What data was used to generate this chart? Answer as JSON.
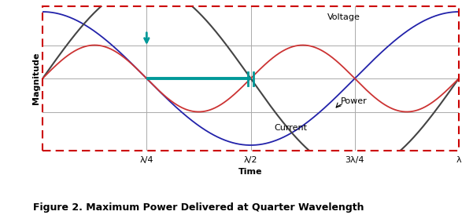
{
  "title": "Figure 2. Maximum Power Delivered at Quarter Wavelength",
  "xlabel": "Time",
  "ylabel": "Magnitude",
  "voltage_label": "Voltage",
  "current_label": "Current",
  "power_label": "Power",
  "voltage_color": "#444444",
  "current_color": "#2222aa",
  "power_color": "#cc3333",
  "border_color": "#cc0000",
  "grid_color": "#aaaaaa",
  "teal_color": "#009999",
  "tick_labels": [
    "λ/4",
    "λ/2",
    "3λ/4",
    "λ"
  ],
  "bg_color": "#ffffff",
  "title_fontsize": 9,
  "label_fontsize": 8,
  "annot_fontsize": 8,
  "ylabel_fontsize": 8
}
